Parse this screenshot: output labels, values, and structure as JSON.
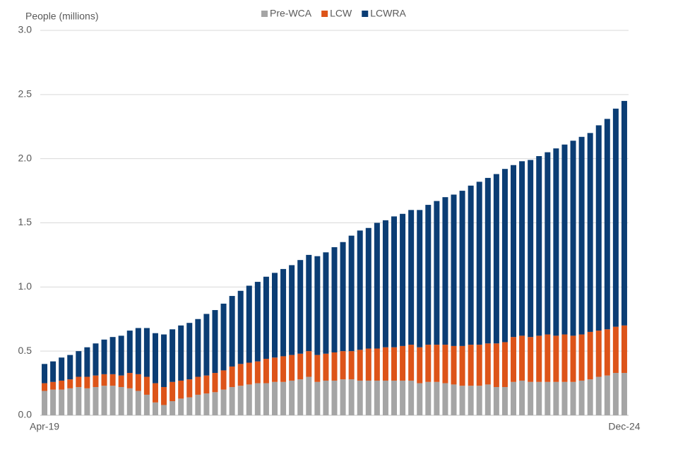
{
  "chart_data": {
    "type": "stacked_bar",
    "y_label": "People (millions)",
    "categories": [
      "Apr-19",
      null,
      null,
      null,
      null,
      null,
      null,
      null,
      null,
      null,
      null,
      null,
      null,
      null,
      null,
      null,
      null,
      null,
      null,
      null,
      null,
      null,
      null,
      null,
      null,
      null,
      null,
      null,
      null,
      null,
      null,
      null,
      null,
      null,
      null,
      null,
      null,
      null,
      null,
      null,
      null,
      null,
      null,
      null,
      null,
      null,
      null,
      null,
      null,
      null,
      null,
      null,
      null,
      null,
      null,
      null,
      null,
      null,
      null,
      null,
      null,
      null,
      null,
      null,
      null,
      null,
      null,
      null,
      "Dec-24"
    ],
    "series": [
      {
        "name": "Pre-WCA",
        "color": "#a5a5a5",
        "values": [
          0.19,
          0.2,
          0.2,
          0.21,
          0.22,
          0.21,
          0.22,
          0.23,
          0.23,
          0.22,
          0.21,
          0.19,
          0.16,
          0.1,
          0.08,
          0.11,
          0.13,
          0.14,
          0.16,
          0.17,
          0.18,
          0.2,
          0.22,
          0.23,
          0.24,
          0.25,
          0.25,
          0.26,
          0.26,
          0.27,
          0.28,
          0.3,
          0.26,
          0.27,
          0.27,
          0.28,
          0.28,
          0.27,
          0.27,
          0.27,
          0.27,
          0.27,
          0.27,
          0.27,
          0.25,
          0.26,
          0.26,
          0.25,
          0.24,
          0.23,
          0.23,
          0.23,
          0.24,
          0.22,
          0.22,
          0.26,
          0.27,
          0.26,
          0.26,
          0.26,
          0.26,
          0.26,
          0.26,
          0.27,
          0.28,
          0.3,
          0.31,
          0.33,
          0.33
        ]
      },
      {
        "name": "LCW",
        "color": "#dd5419",
        "values": [
          0.06,
          0.06,
          0.07,
          0.07,
          0.08,
          0.09,
          0.09,
          0.09,
          0.09,
          0.09,
          0.12,
          0.13,
          0.14,
          0.15,
          0.14,
          0.15,
          0.14,
          0.14,
          0.14,
          0.14,
          0.15,
          0.15,
          0.16,
          0.17,
          0.17,
          0.17,
          0.19,
          0.19,
          0.2,
          0.2,
          0.2,
          0.2,
          0.21,
          0.21,
          0.22,
          0.22,
          0.22,
          0.24,
          0.25,
          0.25,
          0.26,
          0.26,
          0.27,
          0.28,
          0.28,
          0.29,
          0.29,
          0.3,
          0.3,
          0.31,
          0.32,
          0.32,
          0.32,
          0.34,
          0.35,
          0.35,
          0.35,
          0.35,
          0.36,
          0.37,
          0.36,
          0.37,
          0.36,
          0.36,
          0.37,
          0.36,
          0.36,
          0.36,
          0.37
        ]
      },
      {
        "name": "LCWRA",
        "color": "#0b3d74",
        "values": [
          0.15,
          0.16,
          0.18,
          0.19,
          0.2,
          0.23,
          0.25,
          0.27,
          0.29,
          0.31,
          0.33,
          0.36,
          0.38,
          0.39,
          0.41,
          0.41,
          0.43,
          0.44,
          0.45,
          0.48,
          0.49,
          0.52,
          0.55,
          0.57,
          0.6,
          0.62,
          0.64,
          0.66,
          0.68,
          0.7,
          0.73,
          0.75,
          0.77,
          0.79,
          0.82,
          0.85,
          0.9,
          0.93,
          0.94,
          0.98,
          0.99,
          1.02,
          1.03,
          1.05,
          1.07,
          1.09,
          1.12,
          1.15,
          1.18,
          1.21,
          1.24,
          1.27,
          1.29,
          1.32,
          1.35,
          1.34,
          1.36,
          1.38,
          1.4,
          1.42,
          1.46,
          1.48,
          1.52,
          1.54,
          1.55,
          1.6,
          1.64,
          1.7,
          1.75
        ]
      }
    ],
    "ylim": [
      0,
      3
    ],
    "yticks": [
      {
        "value": 0,
        "label": "0.0"
      },
      0.5,
      {
        "value": 1,
        "label": "1.0"
      },
      1.5,
      {
        "value": 2,
        "label": "2.0"
      },
      2.5,
      {
        "value": 3,
        "label": "3.0"
      }
    ],
    "grid": true,
    "legend": "top"
  }
}
